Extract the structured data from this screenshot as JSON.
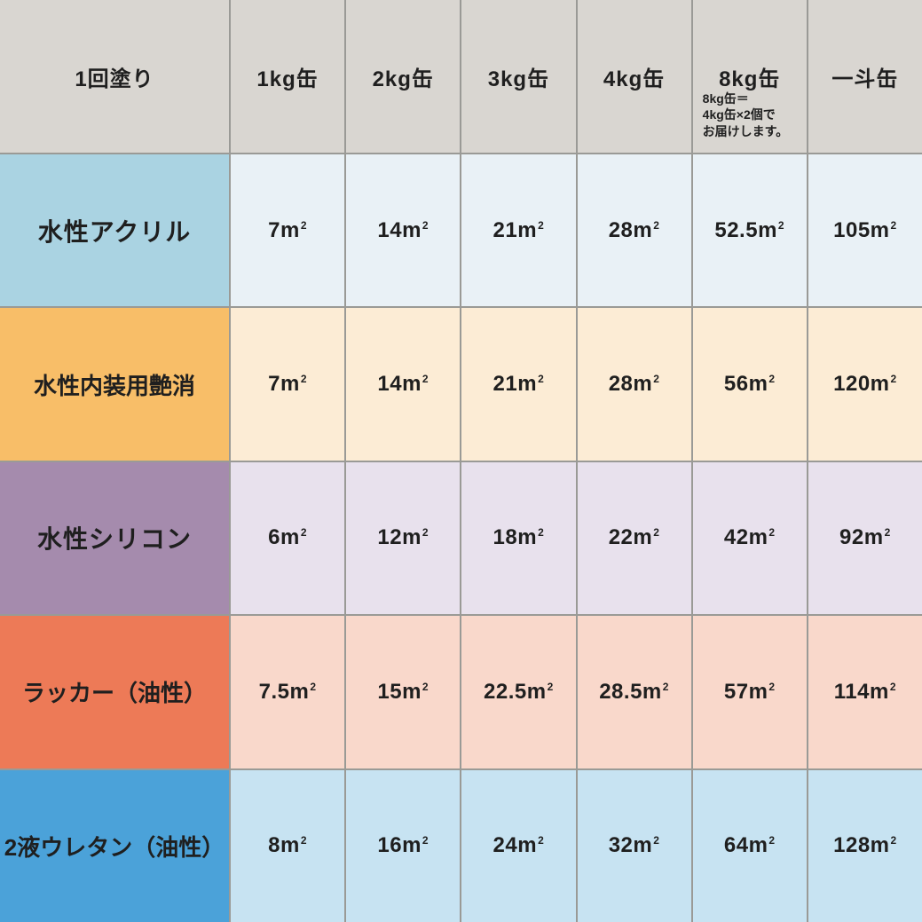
{
  "table": {
    "header": {
      "corner": "1回塗り",
      "columns": [
        "1kg缶",
        "2kg缶",
        "3kg缶",
        "4kg缶",
        "8kg缶",
        "一斗缶"
      ],
      "note_lines": [
        "8kg缶＝",
        "4kg缶×2個で",
        "お届けします。"
      ]
    },
    "unit": {
      "base": "m",
      "exp": "2",
      "symbol": "㎡"
    },
    "rows": [
      {
        "label": "水性アクリル",
        "values": [
          "7",
          "14",
          "21",
          "28",
          "52.5",
          "105"
        ]
      },
      {
        "label": "水性内装用艶消",
        "values": [
          "7",
          "14",
          "21",
          "28",
          "56",
          "120"
        ]
      },
      {
        "label": "水性シリコン",
        "values": [
          "6",
          "12",
          "18",
          "22",
          "42",
          "92"
        ]
      },
      {
        "label": "ラッカー（油性）",
        "values": [
          "7.5",
          "15",
          "22.5",
          "28.5",
          "57",
          "114"
        ]
      },
      {
        "label": "2液ウレタン（油性）",
        "values": [
          "8",
          "16",
          "24",
          "32",
          "64",
          "128"
        ]
      }
    ]
  },
  "colors": {
    "header_bg": "#d9d6d1",
    "grid_line": "#9a9a96",
    "text": "#1f1f1f",
    "row_header_colors": [
      "#aad3e2",
      "#f8be68",
      "#a58bad",
      "#ed7a57",
      "#4ba2d9"
    ],
    "row_cell_colors": [
      "#e9f1f6",
      "#fcecd5",
      "#e8e1ed",
      "#f9d8cb",
      "#c7e3f2"
    ]
  },
  "chart_data": {
    "type": "table",
    "columns": [
      "1回塗り",
      "1kg缶",
      "2kg缶",
      "3kg缶",
      "4kg缶",
      "8kg缶",
      "一斗缶"
    ],
    "rows": [
      [
        "水性アクリル",
        "7㎡",
        "14㎡",
        "21㎡",
        "28㎡",
        "52.5㎡",
        "105㎡"
      ],
      [
        "水性内装用艶消",
        "7㎡",
        "14㎡",
        "21㎡",
        "28㎡",
        "56㎡",
        "120㎡"
      ],
      [
        "水性シリコン",
        "6㎡",
        "12㎡",
        "18㎡",
        "22㎡",
        "42㎡",
        "92㎡"
      ],
      [
        "ラッカー（油性）",
        "7.5㎡",
        "15㎡",
        "22.5㎡",
        "28.5㎡",
        "57㎡",
        "114㎡"
      ],
      [
        "2液ウレタン（油性）",
        "8㎡",
        "16㎡",
        "24㎡",
        "32㎡",
        "64㎡",
        "128㎡"
      ]
    ],
    "note": "8kg缶＝4kg缶×2個でお届けします。",
    "legend_position": "none",
    "grid": true
  }
}
